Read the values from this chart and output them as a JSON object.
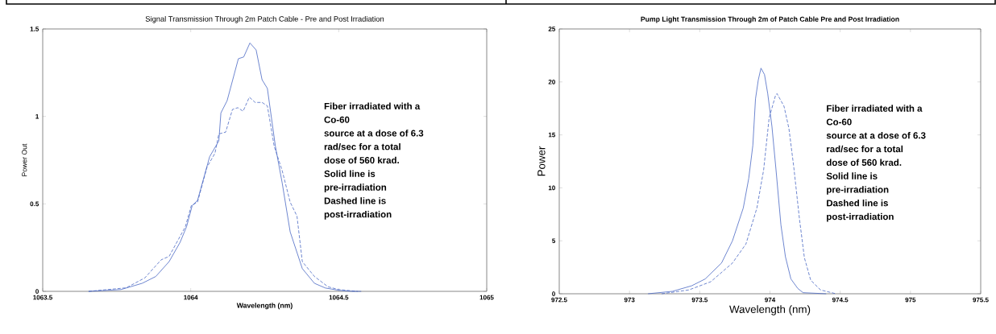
{
  "chart_data": [
    {
      "type": "line",
      "title": "Signal Transmission Through 2m Patch Cable - Pre and Post Irradiation",
      "xlabel": "Wavelength (nm)",
      "ylabel": "Power Out",
      "xlim": [
        1063.5,
        1065
      ],
      "ylim": [
        0,
        1.5
      ],
      "xticks": [
        1063.5,
        1064,
        1064.5,
        1065
      ],
      "yticks": [
        0,
        0.5,
        1,
        1.5
      ],
      "annotations": [
        "Fiber irradiated with a",
        "Co-60",
        "source at a dose of 6.3",
        "rad/sec for a total",
        "dose of 560 krad.",
        "Solid line is",
        "pre-irradiation",
        "Dashed line is",
        "post-irradiation"
      ],
      "series": [
        {
          "color": "#4a68c4",
          "line_style": "solid",
          "x": [
            1063.655,
            1063.764,
            1063.836,
            1063.882,
            1063.927,
            1063.964,
            1063.986,
            1064.005,
            1064.023,
            1064.064,
            1064.095,
            1064.102,
            1064.123,
            1064.161,
            1064.179,
            1064.2,
            1064.221,
            1064.241,
            1064.259,
            1064.286,
            1064.309,
            1064.336,
            1064.377,
            1064.418,
            1064.455,
            1064.5,
            1064.545,
            1064.576
          ],
          "values": [
            0,
            0.01,
            0.046,
            0.085,
            0.17,
            0.28,
            0.37,
            0.49,
            0.52,
            0.77,
            0.86,
            1.02,
            1.09,
            1.33,
            1.34,
            1.42,
            1.38,
            1.21,
            1.16,
            0.83,
            0.62,
            0.34,
            0.13,
            0.046,
            0.019,
            0.006,
            0,
            0
          ]
        },
        {
          "color": "#4a68c4",
          "line_style": "dashed",
          "x": [
            1063.655,
            1063.782,
            1063.845,
            1063.9,
            1063.927,
            1063.982,
            1064.002,
            1064.023,
            1064.055,
            1064.082,
            1064.095,
            1064.118,
            1064.141,
            1064.159,
            1064.177,
            1064.198,
            1064.218,
            1064.241,
            1064.259,
            1064.282,
            1064.309,
            1064.336,
            1064.359,
            1064.377,
            1064.418,
            1064.464,
            1064.5,
            1064.564
          ],
          "values": [
            0,
            0.02,
            0.077,
            0.18,
            0.2,
            0.37,
            0.49,
            0.51,
            0.71,
            0.79,
            0.9,
            0.91,
            1.04,
            1.05,
            1.03,
            1.11,
            1.08,
            1.08,
            1.06,
            0.83,
            0.69,
            0.51,
            0.43,
            0.17,
            0.085,
            0.026,
            0.01,
            0
          ]
        }
      ]
    },
    {
      "type": "line",
      "title": "Pump Light Transmission Through 2m of Patch Cable Pre and Post Irradiation",
      "xlabel": "Wavelength (nm)",
      "ylabel": "Power",
      "xlim": [
        972.5,
        975.5
      ],
      "ylim": [
        0,
        25
      ],
      "xticks": [
        972.5,
        973,
        973.5,
        974,
        974.5,
        975,
        975.5
      ],
      "yticks": [
        0,
        5,
        10,
        15,
        20,
        25
      ],
      "annotations": [
        "Fiber irradiated with a",
        "Co-60",
        "source at a dose of 6.3",
        "rad/sec for a total",
        "dose of 560 krad.",
        "Solid line is",
        "pre-irradiation",
        "Dashed line is",
        "post-irradiation"
      ],
      "series": [
        {
          "color": "#4a68c4",
          "line_style": "solid",
          "x": [
            973.132,
            973.306,
            973.442,
            973.539,
            973.655,
            973.733,
            973.81,
            973.849,
            973.878,
            973.897,
            973.917,
            973.936,
            973.961,
            973.984,
            974.014,
            974.043,
            974.078,
            974.11,
            974.149,
            974.198,
            974.236,
            974.4
          ],
          "values": [
            0,
            0.23,
            0.75,
            1.4,
            2.9,
            5.0,
            8.1,
            10.9,
            14.0,
            18.4,
            20.2,
            21.3,
            20.7,
            18.9,
            15.8,
            11.7,
            6.5,
            3.5,
            1.4,
            0.5,
            0.1,
            0
          ]
        },
        {
          "color": "#4a68c4",
          "line_style": "dashed",
          "x": [
            973.229,
            973.422,
            973.578,
            973.733,
            973.829,
            973.907,
            973.955,
            973.994,
            974.039,
            974.05,
            974.1,
            974.135,
            974.17,
            974.21,
            974.245,
            974.29,
            974.36,
            974.47
          ],
          "values": [
            0,
            0.36,
            1.13,
            2.9,
            4.7,
            8.1,
            11.7,
            16.6,
            18.7,
            18.9,
            17.7,
            15.6,
            11.9,
            7.05,
            3.4,
            1.28,
            0.36,
            0
          ]
        }
      ]
    }
  ]
}
